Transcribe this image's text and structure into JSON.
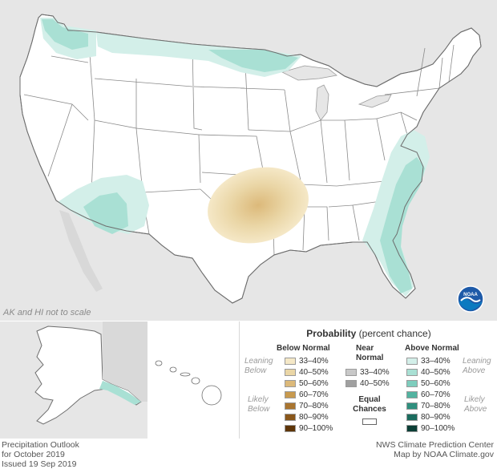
{
  "map": {
    "scale_note": "AK and HI not to scale"
  },
  "legend": {
    "title_bold": "Probability",
    "title_rest": " (percent chance)",
    "below_normal": {
      "header": "Below Normal",
      "leaning_label": [
        "Leaning",
        "Below"
      ],
      "likely_label": [
        "Likely",
        "Below"
      ],
      "ranges": [
        "33–40%",
        "40–50%",
        "50–60%",
        "60–70%",
        "70–80%",
        "80–90%",
        "90–100%"
      ],
      "colors": [
        "#f5e8c7",
        "#ead6a6",
        "#dcb97a",
        "#c89a4e",
        "#a97530",
        "#8a571b",
        "#5e3508"
      ]
    },
    "near_normal": {
      "header": [
        "Near",
        "Normal"
      ],
      "ranges": [
        "33–40%",
        "40–50%"
      ],
      "colors": [
        "#c8c8c8",
        "#a0a0a0"
      ]
    },
    "equal_chances": {
      "label": [
        "Equal",
        "Chances"
      ],
      "color": "#ffffff"
    },
    "above_normal": {
      "header": "Above Normal",
      "leaning_label": [
        "Leaning",
        "Above"
      ],
      "likely_label": [
        "Likely",
        "Above"
      ],
      "ranges": [
        "33–40%",
        "40–50%",
        "50–60%",
        "60–70%",
        "70–80%",
        "80–90%",
        "90–100%"
      ],
      "colors": [
        "#d3efe9",
        "#a9e0d4",
        "#7ecdbd",
        "#52b3a0",
        "#2f8f7e",
        "#1b6c5e",
        "#0b3f36"
      ]
    }
  },
  "footer": {
    "left": [
      "Precipitation Outlook",
      "for October 2019",
      "Issued 19 Sep 2019"
    ],
    "right": [
      "NWS Climate Prediction Center",
      "Map by NOAA Climate.gov"
    ]
  },
  "logo": {
    "text": "NOAA",
    "colors": {
      "outer": "#1e5aa8",
      "wave": "#ffffff",
      "inner": "#0b7ac0"
    }
  }
}
